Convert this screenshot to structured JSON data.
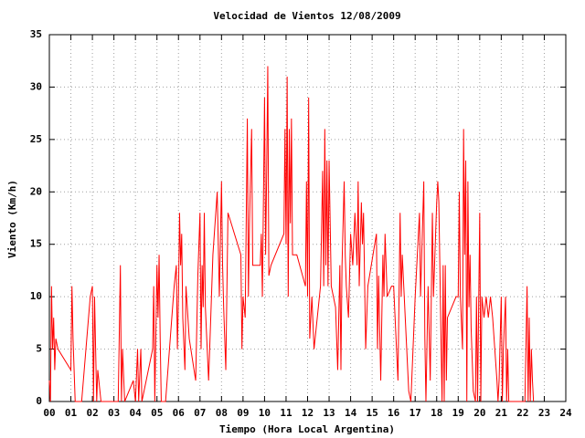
{
  "chart_data": {
    "type": "line",
    "title": "Velocidad de Vientos 12/08/2009",
    "xlabel": "Tiempo (Hora Local Argentina)",
    "ylabel": "Viento (Km/h)",
    "color": "#ff0000",
    "grid": true,
    "xlim": [
      0,
      24
    ],
    "ylim": [
      0,
      35
    ],
    "xticks": [
      {
        "value": 0,
        "label": "00"
      },
      {
        "value": 1,
        "label": "01"
      },
      {
        "value": 2,
        "label": "02"
      },
      {
        "value": 3,
        "label": "03"
      },
      {
        "value": 4,
        "label": "04"
      },
      {
        "value": 5,
        "label": "05"
      },
      {
        "value": 6,
        "label": "06"
      },
      {
        "value": 7,
        "label": "07"
      },
      {
        "value": 8,
        "label": "08"
      },
      {
        "value": 9,
        "label": "09"
      },
      10,
      11,
      12,
      13,
      14,
      15,
      16,
      17,
      18,
      19,
      20,
      21,
      22,
      23,
      24
    ],
    "yticks": [
      0,
      5,
      10,
      15,
      20,
      25,
      30,
      35
    ],
    "x": [
      0,
      0.05,
      0.1,
      0.15,
      0.2,
      0.25,
      0.3,
      0.4,
      1.0,
      1.05,
      1.1,
      1.2,
      1.5,
      1.9,
      2.0,
      2.05,
      2.1,
      2.2,
      2.25,
      2.4,
      3.0,
      3.2,
      3.3,
      3.35,
      3.4,
      3.5,
      3.9,
      4.0,
      4.1,
      4.15,
      4.25,
      4.3,
      4.5,
      4.8,
      4.85,
      4.9,
      5.0,
      5.05,
      5.1,
      5.15,
      5.2,
      5.4,
      5.8,
      5.9,
      5.95,
      6.0,
      6.05,
      6.1,
      6.15,
      6.2,
      6.3,
      6.35,
      6.5,
      6.8,
      6.9,
      7.0,
      7.05,
      7.1,
      7.15,
      7.2,
      7.25,
      7.4,
      7.6,
      7.7,
      7.8,
      7.9,
      8.0,
      8.05,
      8.1,
      8.2,
      8.3,
      8.9,
      8.95,
      9.0,
      9.1,
      9.2,
      9.25,
      9.3,
      9.4,
      9.45,
      9.8,
      9.85,
      9.9,
      10.0,
      10.05,
      10.1,
      10.15,
      10.2,
      10.3,
      10.9,
      10.95,
      11.0,
      11.05,
      11.1,
      11.15,
      11.2,
      11.25,
      11.3,
      11.5,
      11.9,
      11.95,
      12.0,
      12.05,
      12.1,
      12.2,
      12.3,
      12.6,
      12.7,
      12.75,
      12.8,
      12.85,
      12.9,
      12.95,
      13.0,
      13.1,
      13.3,
      13.4,
      13.5,
      13.55,
      13.6,
      13.7,
      13.75,
      13.8,
      13.9,
      14.0,
      14.1,
      14.2,
      14.3,
      14.35,
      14.4,
      14.5,
      14.55,
      14.6,
      14.7,
      14.8,
      15.2,
      15.25,
      15.3,
      15.4,
      15.5,
      15.55,
      15.6,
      15.7,
      15.9,
      16.0,
      16.2,
      16.3,
      16.35,
      16.4,
      16.7,
      16.8,
      17.0,
      17.2,
      17.25,
      17.4,
      17.45,
      17.5,
      17.6,
      17.7,
      17.8,
      17.85,
      18.0,
      18.05,
      18.1,
      18.2,
      18.25,
      18.3,
      18.35,
      18.4,
      18.45,
      18.5,
      18.9,
      19.0,
      19.05,
      19.1,
      19.2,
      19.25,
      19.3,
      19.35,
      19.4,
      19.45,
      19.5,
      19.55,
      19.6,
      19.7,
      19.8,
      19.85,
      19.9,
      20.0,
      20.05,
      20.1,
      20.2,
      20.3,
      20.4,
      20.5,
      20.6,
      20.8,
      20.85,
      20.9,
      21.0,
      21.05,
      21.1,
      21.2,
      21.25,
      21.3,
      21.35,
      22.1,
      22.2,
      22.25,
      22.3,
      22.35,
      22.4,
      22.45,
      22.5
    ],
    "values": [
      2,
      0,
      11,
      5,
      8,
      3,
      6,
      5,
      3,
      11,
      6,
      0,
      0,
      10,
      11,
      0,
      10,
      0,
      3,
      0,
      0,
      0,
      13,
      0,
      5,
      0,
      2,
      0,
      5,
      0,
      5,
      0,
      2,
      5,
      11,
      0,
      13,
      8,
      14,
      6,
      0,
      0,
      11,
      13,
      5,
      10,
      18,
      13,
      16,
      8,
      3,
      11,
      6,
      2,
      12,
      18,
      5,
      13,
      9,
      18,
      9,
      2,
      14,
      17,
      20,
      10,
      21,
      13,
      9,
      3,
      18,
      14,
      5,
      10,
      8,
      27,
      10,
      17,
      26,
      13,
      13,
      16,
      10,
      29,
      14,
      22,
      32,
      12,
      13,
      16,
      26,
      15,
      31,
      10,
      26,
      17,
      27,
      14,
      14,
      11,
      21,
      10,
      29,
      6,
      10,
      5,
      11,
      22,
      11,
      26,
      13,
      23,
      11,
      23,
      11,
      9,
      3,
      13,
      3,
      13,
      21,
      14,
      11,
      8,
      16,
      13,
      18,
      13,
      21,
      11,
      19,
      15,
      18,
      5,
      11,
      16,
      5,
      12,
      2,
      14,
      10,
      16,
      10,
      11,
      11,
      2,
      18,
      10,
      14,
      1,
      0,
      10,
      18,
      10,
      21,
      6,
      0,
      11,
      2,
      18,
      10,
      19,
      21,
      19,
      6,
      0,
      13,
      0,
      13,
      2,
      8,
      10,
      10,
      20,
      10,
      5,
      26,
      14,
      23,
      0,
      21,
      9,
      14,
      7,
      1,
      0,
      10,
      0,
      18,
      0,
      10,
      8,
      10,
      8,
      10,
      8,
      2,
      0,
      2,
      10,
      0,
      5,
      10,
      0,
      5,
      0,
      0,
      11,
      0,
      8,
      0,
      5,
      2,
      0
    ]
  }
}
